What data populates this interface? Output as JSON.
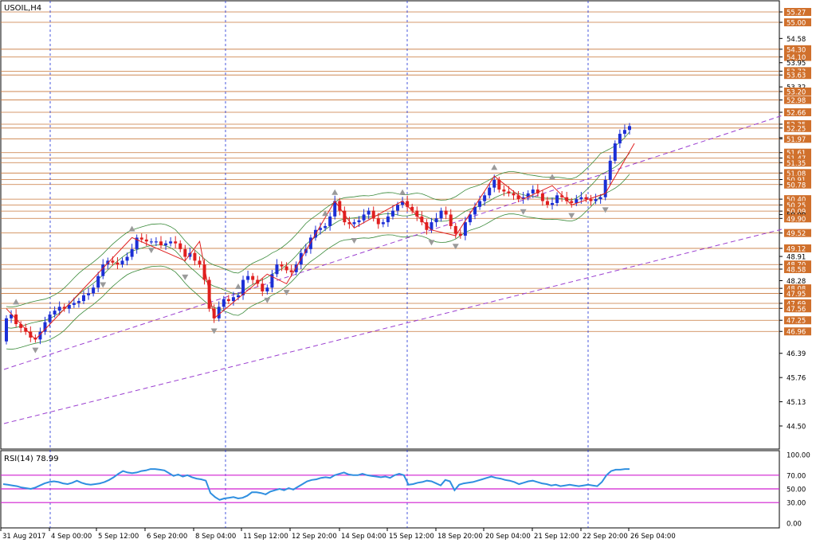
{
  "symbol_label": "USOIL,H4",
  "rsi_label": "RSI(14) 78.99",
  "colors": {
    "bull": "#1c2fd6",
    "bear": "#e01f1f",
    "level_line": "#c8783c",
    "level_tag": "#d0702c",
    "bands": "#3a8a3a",
    "zigzag": "#e01f1f",
    "channel": "#9b3fd0",
    "rsi_line": "#2f8fe0",
    "rsi_levels": "#d01fd0",
    "vgrid": "#1c2fd6",
    "fractal": "#9a9a9a"
  },
  "price_axis_labels": [
    "55.27",
    "55.00",
    "54.58",
    "54.30",
    "54.10",
    "53.95",
    "53.73",
    "53.63",
    "53.32",
    "53.20",
    "52.98",
    "52.66",
    "52.35",
    "52.25",
    "52.00",
    "51.97",
    "51.61",
    "51.47",
    "51.35",
    "51.08",
    "50.91",
    "50.78",
    "50.40",
    "50.25",
    "50.09",
    "50.00",
    "49.90",
    "49.52",
    "49.12",
    "48.91",
    "48.70",
    "48.58",
    "48.28",
    "48.08",
    "47.95",
    "47.69",
    "47.56",
    "47.25",
    "46.96",
    "46.39",
    "45.76",
    "45.13",
    "44.50"
  ],
  "tagged_levels": [
    "55.27",
    "55.00",
    "54.30",
    "54.10",
    "53.73",
    "53.63",
    "53.20",
    "52.98",
    "52.66",
    "52.35",
    "52.25",
    "51.97",
    "51.61",
    "51.47",
    "51.35",
    "51.08",
    "50.91",
    "50.78",
    "50.40",
    "50.25",
    "50.09",
    "49.90",
    "49.52",
    "49.12",
    "48.70",
    "48.58",
    "48.08",
    "47.95",
    "47.69",
    "47.56",
    "47.25",
    "46.96"
  ],
  "time_labels": [
    "31 Aug 2017",
    "4 Sep 00:00",
    "5 Sep 12:00",
    "6 Sep 20:00",
    "8 Sep 04:00",
    "11 Sep 12:00",
    "12 Sep 20:00",
    "14 Sep 04:00",
    "15 Sep 12:00",
    "18 Sep 20:00",
    "20 Sep 04:00",
    "21 Sep 12:00",
    "22 Sep 20:00",
    "26 Sep 04:00"
  ],
  "rsi_axis_labels": [
    "100.00",
    "70.00",
    "50.00",
    "30.00",
    "0.00"
  ],
  "chart_data": {
    "type": "candlestick",
    "title": "USOIL,H4",
    "ylim": [
      44.1,
      55.6
    ],
    "rsi": {
      "label": "RSI(14) 78.99",
      "ylim": [
        0,
        100
      ],
      "levels": [
        70,
        50,
        30
      ],
      "values": [
        57,
        56,
        55,
        54,
        52,
        51,
        50,
        52,
        55,
        58,
        60,
        61,
        60,
        58,
        57,
        59,
        62,
        59,
        57,
        56,
        57,
        58,
        60,
        63,
        67,
        72,
        76,
        74,
        73,
        74,
        76,
        77,
        79,
        79,
        78,
        77,
        73,
        69,
        71,
        68,
        70,
        67,
        65,
        64,
        62,
        44,
        38,
        34,
        36,
        37,
        38,
        36,
        37,
        40,
        45,
        45,
        44,
        42,
        46,
        48,
        50,
        48,
        51,
        49,
        53,
        57,
        61,
        63,
        64,
        66,
        67,
        66,
        70,
        72,
        74,
        71,
        70,
        70,
        72,
        70,
        69,
        68,
        67,
        68,
        66,
        70,
        72,
        70,
        56,
        57,
        59,
        60,
        62,
        61,
        58,
        55,
        63,
        61,
        48,
        56,
        58,
        59,
        60,
        62,
        64,
        66,
        68,
        66,
        65,
        63,
        62,
        60,
        57,
        59,
        61,
        62,
        60,
        58,
        57,
        55,
        56,
        54,
        55,
        56,
        55,
        54,
        55,
        56,
        55,
        54,
        60,
        70,
        76,
        78,
        78,
        79,
        79
      ]
    }
  }
}
